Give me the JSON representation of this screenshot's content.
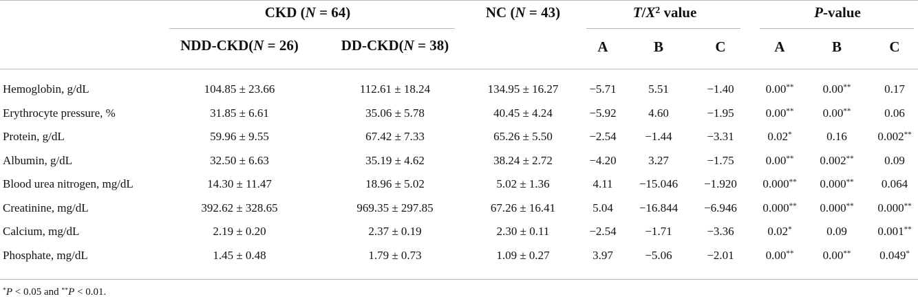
{
  "header": {
    "ckd_group": "CKD (N = 64)",
    "nc_group": "NC (N = 43)",
    "t_group": "T/X2 value",
    "p_group": "P-value",
    "ndd": "NDD-CKD(N = 26)",
    "dd": "DD-CKD(N = 38)",
    "t_cols": [
      "A",
      "B",
      "C"
    ],
    "p_cols": [
      "A",
      "B",
      "C"
    ]
  },
  "rows": [
    {
      "label": "Hemoglobin, g/dL",
      "ndd": "104.85 ± 23.66",
      "dd": "112.61 ± 18.24",
      "nc": "134.95 ± 16.27",
      "tA": "−5.71",
      "tB": "5.51",
      "tC": "−1.40",
      "pA": "0.00**",
      "pB": "0.00**",
      "pC": "0.17"
    },
    {
      "label": "Erythrocyte pressure, %",
      "ndd": "31.85 ± 6.61",
      "dd": "35.06 ± 5.78",
      "nc": "40.45 ± 4.24",
      "tA": "−5.92",
      "tB": "4.60",
      "tC": "−1.95",
      "pA": "0.00**",
      "pB": "0.00**",
      "pC": "0.06"
    },
    {
      "label": "Protein, g/dL",
      "ndd": "59.96 ± 9.55",
      "dd": "67.42 ± 7.33",
      "nc": "65.26 ± 5.50",
      "tA": "−2.54",
      "tB": "−1.44",
      "tC": "−3.31",
      "pA": "0.02*",
      "pB": "0.16",
      "pC": "0.002**"
    },
    {
      "label": "Albumin, g/dL",
      "ndd": "32.50 ± 6.63",
      "dd": "35.19 ± 4.62",
      "nc": "38.24 ± 2.72",
      "tA": "−4.20",
      "tB": "3.27",
      "tC": "−1.75",
      "pA": "0.00**",
      "pB": "0.002**",
      "pC": "0.09"
    },
    {
      "label": "Blood urea nitrogen, mg/dL",
      "ndd": "14.30 ± 11.47",
      "dd": "18.96 ± 5.02",
      "nc": "5.02 ± 1.36",
      "tA": "4.11",
      "tB": "−15.046",
      "tC": "−1.920",
      "pA": "0.000**",
      "pB": "0.000**",
      "pC": "0.064"
    },
    {
      "label": "Creatinine, mg/dL",
      "ndd": "392.62 ± 328.65",
      "dd": "969.35 ± 297.85",
      "nc": "67.26 ± 16.41",
      "tA": "5.04",
      "tB": "−16.844",
      "tC": "−6.946",
      "pA": "0.000**",
      "pB": "0.000**",
      "pC": "0.000**"
    },
    {
      "label": "Calcium, mg/dL",
      "ndd": "2.19 ± 0.20",
      "dd": "2.37 ± 0.19",
      "nc": "2.30 ± 0.11",
      "tA": "−2.54",
      "tB": "−1.71",
      "tC": "−3.36",
      "pA": "0.02*",
      "pB": "0.09",
      "pC": "0.001**"
    },
    {
      "label": "Phosphate, mg/dL",
      "ndd": "1.45 ± 0.48",
      "dd": "1.79 ± 0.73",
      "nc": "1.09 ± 0.27",
      "tA": "3.97",
      "tB": "−5.06",
      "tC": "−2.01",
      "pA": "0.00**",
      "pB": "0.00**",
      "pC": "0.049*"
    }
  ],
  "footnote": "*P < 0.05 and **P < 0.01."
}
